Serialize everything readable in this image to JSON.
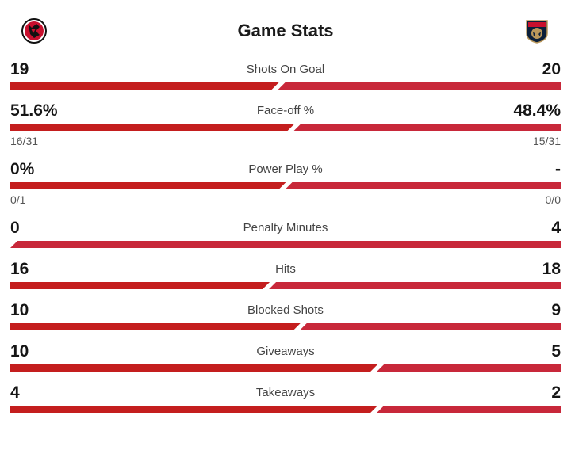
{
  "title": "Game Stats",
  "teams": {
    "away": {
      "logo_icon": "new-jersey-devils-logo-icon",
      "color": "#c8102e"
    },
    "home": {
      "logo_icon": "florida-panthers-logo-icon",
      "color": "#c8102e"
    }
  },
  "colors": {
    "away_bar": "#c41e1e",
    "home_bar": "#c8283a"
  },
  "stats": [
    {
      "label": "Shots On Goal",
      "left": "19",
      "right": "20",
      "left_num": 19,
      "right_num": 20
    },
    {
      "label": "Face-off %",
      "left": "51.6%",
      "right": "48.4%",
      "left_num": 51.6,
      "right_num": 48.4,
      "left_sub": "16/31",
      "right_sub": "15/31"
    },
    {
      "label": "Power Play %",
      "left": "0%",
      "right": "-",
      "left_num": 0,
      "right_num": 0,
      "left_sub": "0/1",
      "right_sub": "0/0"
    },
    {
      "label": "Penalty Minutes",
      "left": "0",
      "right": "4",
      "left_num": 0,
      "right_num": 4
    },
    {
      "label": "Hits",
      "left": "16",
      "right": "18",
      "left_num": 16,
      "right_num": 18
    },
    {
      "label": "Blocked Shots",
      "left": "10",
      "right": "9",
      "left_num": 10,
      "right_num": 9
    },
    {
      "label": "Giveaways",
      "left": "10",
      "right": "5",
      "left_num": 10,
      "right_num": 5
    },
    {
      "label": "Takeaways",
      "left": "4",
      "right": "2",
      "left_num": 4,
      "right_num": 2
    }
  ]
}
